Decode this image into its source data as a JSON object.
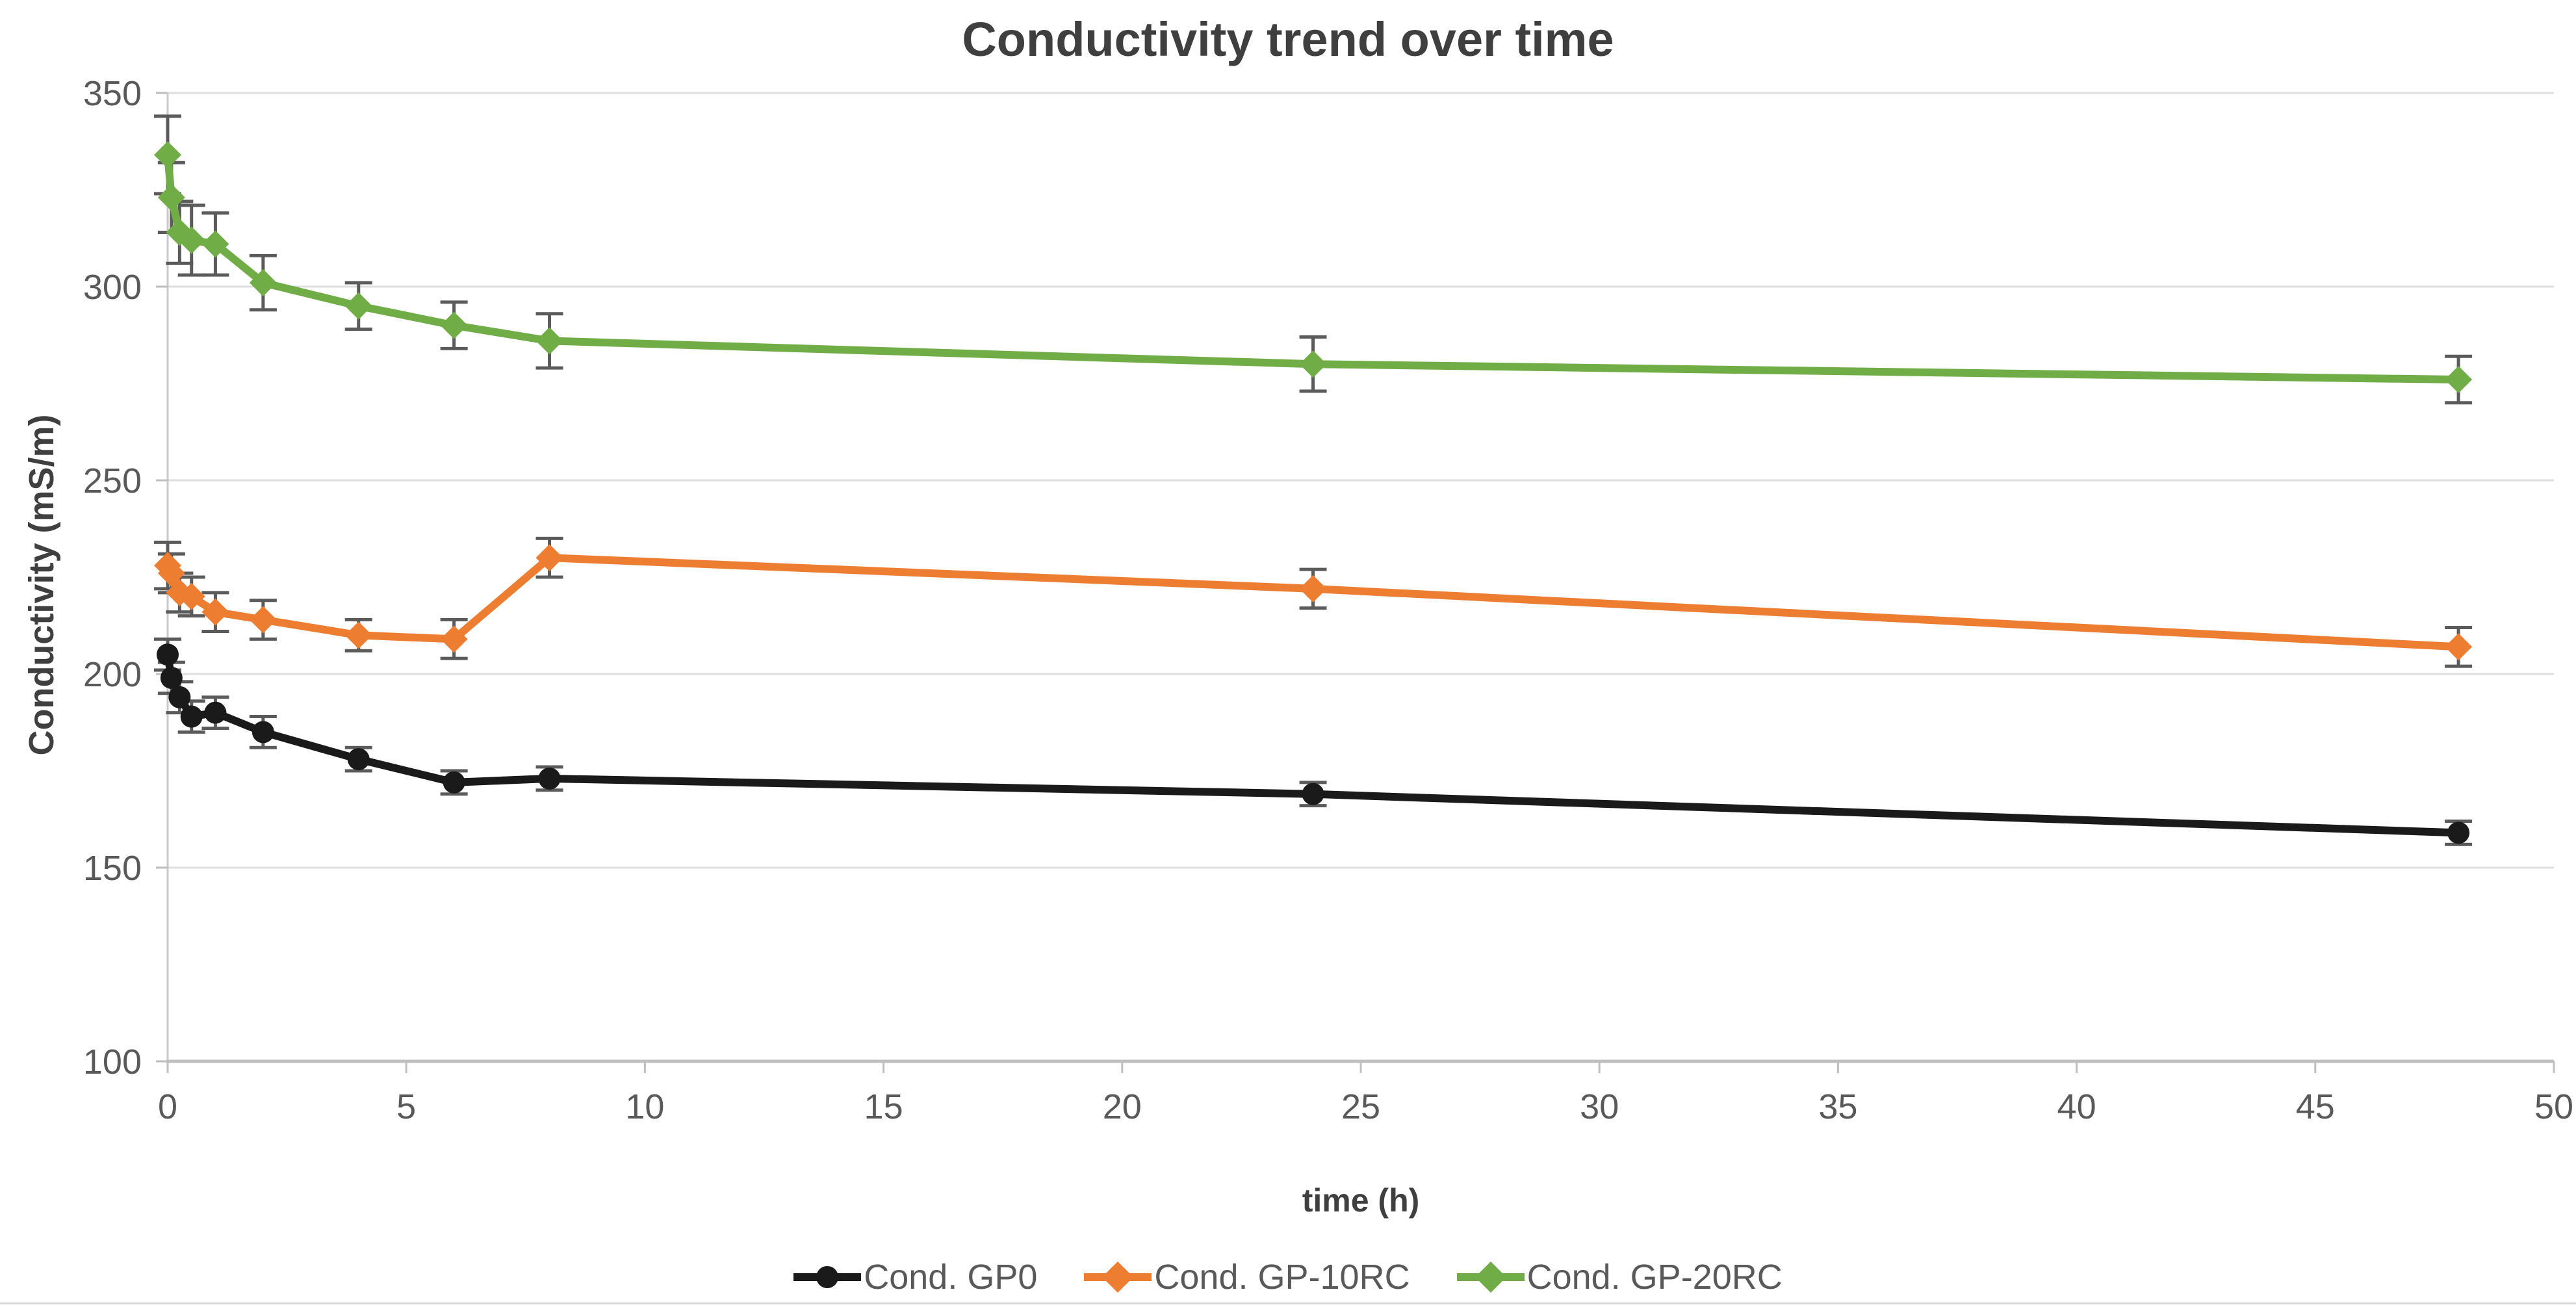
{
  "chart_data": {
    "type": "line",
    "title": "Conductivity trend over time",
    "xlabel": "time (h)",
    "ylabel": "Conductivity (mS/m)",
    "xlim": [
      0,
      50
    ],
    "ylim": [
      100,
      350
    ],
    "x_ticks": [
      0,
      5,
      10,
      15,
      20,
      25,
      30,
      35,
      40,
      45,
      50
    ],
    "y_ticks": [
      100,
      150,
      200,
      250,
      300,
      350
    ],
    "grid": "horizontal",
    "legend_position": "bottom-center",
    "x": [
      0,
      0.08,
      0.25,
      0.5,
      1,
      2,
      4,
      6,
      8,
      24,
      48
    ],
    "series": [
      {
        "name": "Cond. GP0",
        "color": "#1a1a1a",
        "marker": "circle",
        "values": [
          205,
          199,
          194,
          189,
          190,
          185,
          178,
          172,
          173,
          169,
          159
        ],
        "errors": [
          4,
          4,
          4,
          4,
          4,
          4,
          3,
          3,
          3,
          3,
          3
        ]
      },
      {
        "name": "Cond. GP-10RC",
        "color": "#ed7d31",
        "marker": "diamond",
        "values": [
          228,
          226,
          221,
          220,
          216,
          214,
          210,
          209,
          230,
          222,
          207
        ],
        "errors": [
          6,
          5,
          5,
          5,
          5,
          5,
          4,
          5,
          5,
          5,
          5
        ]
      },
      {
        "name": "Cond. GP-20RC",
        "color": "#70ad47",
        "marker": "diamond",
        "values": [
          334,
          323,
          314,
          312,
          311,
          301,
          295,
          290,
          286,
          280,
          276
        ],
        "errors": [
          10,
          9,
          8,
          9,
          8,
          7,
          6,
          6,
          7,
          7,
          6
        ]
      }
    ],
    "error_bar_color": "#5b5b5b",
    "gridline_color": "#dedede",
    "axis_line_color": "#bfbfbf",
    "tick_label_color": "#595959",
    "title_color": "#3f3f3f"
  }
}
